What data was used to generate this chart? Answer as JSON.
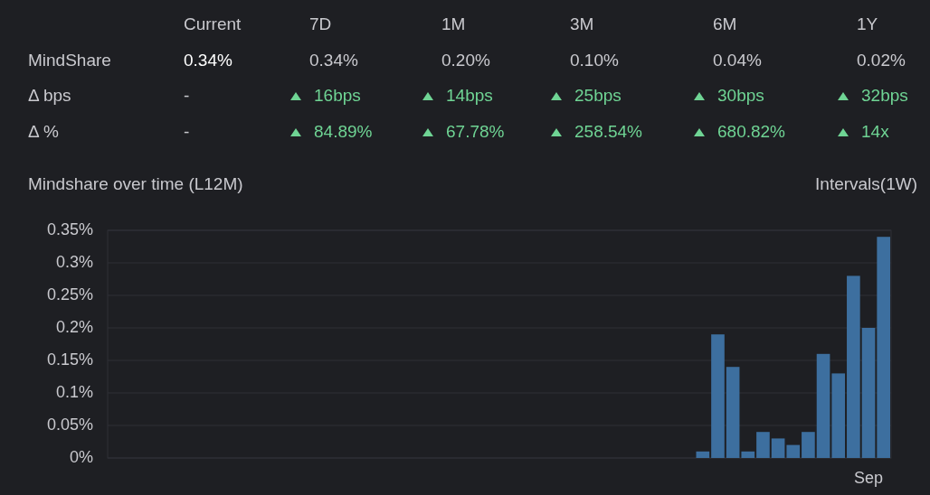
{
  "chart_data": [
    {
      "type": "other",
      "categories": [
        "Current",
        "7D",
        "1M",
        "3M",
        "6M",
        "1Y"
      ],
      "y_categories": [
        "MindShare",
        "Δ bps",
        "Δ %"
      ],
      "cell_labels": [
        [
          "0.34%",
          "0.34%",
          "0.20%",
          "0.10%",
          "0.04%",
          "0.02%"
        ],
        [
          "-",
          "16bps",
          "14bps",
          "25bps",
          "30bps",
          "32bps"
        ],
        [
          "-",
          "84.89%",
          "67.78%",
          "258.54%",
          "680.82%",
          "14x"
        ]
      ]
    },
    {
      "type": "bar",
      "title": "Mindshare over time (L12M)",
      "annotations": [
        "Intervals(1W)"
      ],
      "categories": [
        null,
        null,
        null,
        null,
        null,
        null,
        null,
        null,
        null,
        null,
        null,
        null,
        null,
        null,
        null,
        null,
        null,
        null,
        null,
        null,
        null,
        null,
        null,
        null,
        null,
        null,
        null,
        null,
        null,
        null,
        null,
        null,
        null,
        null,
        null,
        null,
        null,
        null,
        null,
        null,
        null,
        null,
        null,
        null,
        null,
        null,
        null,
        null,
        null,
        null,
        "Sep",
        null
      ],
      "values": [
        null,
        null,
        null,
        null,
        null,
        null,
        null,
        null,
        null,
        null,
        null,
        null,
        null,
        null,
        null,
        null,
        null,
        null,
        null,
        null,
        null,
        null,
        null,
        null,
        null,
        null,
        null,
        null,
        null,
        null,
        null,
        null,
        null,
        null,
        null,
        null,
        null,
        null,
        null,
        0.01,
        0.19,
        0.14,
        0.01,
        0.04,
        0.03,
        0.02,
        0.04,
        0.16,
        0.13,
        0.28,
        0.2,
        0.34
      ],
      "color": "#3d6f9f",
      "ylim": [
        0,
        0.35
      ],
      "yticks": [
        {
          "value": 0,
          "label": "0%"
        },
        {
          "value": 0.05,
          "label": "0.05%"
        },
        {
          "value": 0.1,
          "label": "0.1%"
        },
        {
          "value": 0.15,
          "label": "0.15%"
        },
        {
          "value": 0.2,
          "label": "0.2%"
        },
        {
          "value": 0.25,
          "label": "0.25%"
        },
        {
          "value": 0.3,
          "label": "0.3%"
        },
        {
          "value": 0.35,
          "label": "0.35%"
        }
      ],
      "grid": "y"
    }
  ]
}
